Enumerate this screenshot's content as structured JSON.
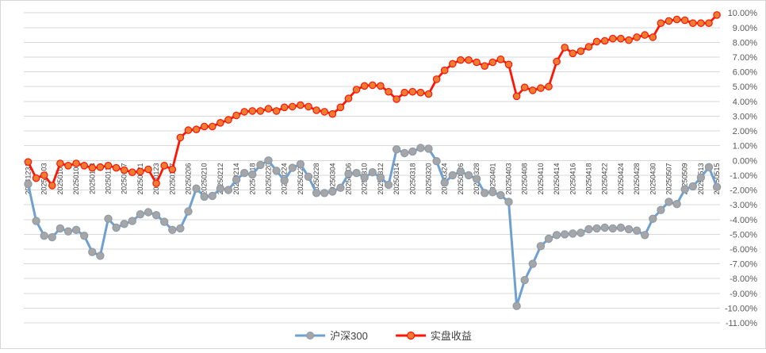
{
  "chart": {
    "background": "#FFFFFF",
    "border_color": "#D6D6D6",
    "grid_color": "#D9D9D9",
    "y_axis_label_color": "#595959",
    "x_axis_label_color": "#404040",
    "series_colors": {
      "csi300_line": "#6FA0D2",
      "csi300_marker_fill": "#A6A6A6",
      "csi300_marker_stroke": "#8C9BAB",
      "returns_line": "#FF1506",
      "returns_marker_fill": "#ED7D31",
      "returns_marker_stroke": "#FF1506"
    }
  },
  "chart_data": {
    "type": "line",
    "title": "",
    "xlabel": "",
    "ylabel": "",
    "ylim": [
      -11,
      10
    ],
    "y_tick_step": 1,
    "grid": "horizontal",
    "legend_position": "bottom",
    "y_tick_labels": [
      "10.00%",
      "9.00%",
      "8.00%",
      "7.00%",
      "6.00%",
      "5.00%",
      "4.00%",
      "3.00%",
      "2.00%",
      "1.00%",
      "0.00%",
      "-1.00%",
      "-2.00%",
      "-3.00%",
      "-4.00%",
      "-5.00%",
      "-6.00%",
      "-7.00%",
      "-8.00%",
      "-9.00%",
      "-10.00%",
      "-11.00%"
    ],
    "x": [
      "20241231",
      "20250102",
      "20250103",
      "20250106",
      "20250107",
      "20250108",
      "20250109",
      "20250110",
      "20250113",
      "20250114",
      "20250115",
      "20250116",
      "20250117",
      "20250120",
      "20250121",
      "20250122",
      "20250123",
      "20250124",
      "20250127",
      "20250205",
      "20250206",
      "20250207",
      "20250210",
      "20250211",
      "20250212",
      "20250213",
      "20250214",
      "20250217",
      "20250218",
      "20250219",
      "20250220",
      "20250221",
      "20250224",
      "20250225",
      "20250226",
      "20250227",
      "20250228",
      "20250303",
      "20250304",
      "20250305",
      "20250306",
      "20250307",
      "20250310",
      "20250311",
      "20250312",
      "20250313",
      "20250314",
      "20250317",
      "20250318",
      "20250319",
      "20250320",
      "20250321",
      "20250324",
      "20250325",
      "20250326",
      "20250327",
      "20250328",
      "20250331",
      "20250401",
      "20250402",
      "20250403",
      "20250407",
      "20250408",
      "20250409",
      "20250410",
      "20250411",
      "20250414",
      "20250415",
      "20250416",
      "20250417",
      "20250418",
      "20250421",
      "20250422",
      "20250423",
      "20250424",
      "20250425",
      "20250428",
      "20250429",
      "20250430",
      "20250506",
      "20250507",
      "20250508",
      "20250509",
      "20250512",
      "20250513",
      "20250514",
      "20250515"
    ],
    "x_tick_labels": [
      "20241231",
      "20250103",
      "20250107",
      "20250109",
      "20250113",
      "20250115",
      "20250117",
      "20250121",
      "20250123",
      "20250127",
      "20250206",
      "20250210",
      "20250212",
      "20250214",
      "20250218",
      "20250220",
      "20250224",
      "20250226",
      "20250228",
      "20250304",
      "20250306",
      "20250310",
      "20250312",
      "20250314",
      "20250318",
      "20250320",
      "20250324",
      "20250326",
      "20250328",
      "20250401",
      "20250403",
      "20250408",
      "20250410",
      "20250414",
      "20250416",
      "20250418",
      "20250422",
      "20250424",
      "20250428",
      "20250430",
      "20250507",
      "20250509",
      "20250513",
      "20250515"
    ],
    "x_tick_every": 2,
    "series": [
      {
        "name": "沪深300",
        "values": [
          -1.6,
          -4.1,
          -5.1,
          -5.2,
          -4.6,
          -4.8,
          -4.7,
          -5.1,
          -6.2,
          -6.45,
          -3.95,
          -4.55,
          -4.3,
          -4.1,
          -3.65,
          -3.5,
          -3.7,
          -4.15,
          -4.7,
          -4.6,
          -3.45,
          -1.9,
          -2.45,
          -2.4,
          -1.9,
          -2.0,
          -1.3,
          -0.85,
          -0.95,
          -0.3,
          0.0,
          -0.7,
          -1.35,
          -0.5,
          -0.25,
          -1.1,
          -2.2,
          -2.2,
          -2.1,
          -1.85,
          -0.9,
          -0.85,
          -1.15,
          -0.8,
          -1.15,
          -1.65,
          0.75,
          0.5,
          0.6,
          0.85,
          0.8,
          -0.05,
          -1.5,
          -1.0,
          -0.75,
          -1.0,
          -1.25,
          -2.2,
          -2.15,
          -2.35,
          -2.8,
          -9.85,
          -8.1,
          -7.0,
          -5.8,
          -5.3,
          -5.05,
          -5.0,
          -4.95,
          -4.9,
          -4.65,
          -4.6,
          -4.55,
          -4.6,
          -4.55,
          -4.65,
          -4.75,
          -5.05,
          -3.95,
          -3.35,
          -2.8,
          -2.95,
          -1.95,
          -1.75,
          -1.15,
          -0.45,
          -1.8
        ]
      },
      {
        "name": "实盘收益",
        "values": [
          -0.1,
          -1.2,
          -1.0,
          -1.7,
          -0.2,
          -0.35,
          -0.2,
          -0.35,
          -0.5,
          -0.45,
          -0.35,
          -0.5,
          -0.65,
          -0.8,
          -0.75,
          -0.6,
          -1.55,
          -0.35,
          -0.6,
          1.55,
          2.05,
          2.1,
          2.3,
          2.3,
          2.55,
          2.75,
          3.05,
          3.3,
          3.35,
          3.35,
          3.5,
          3.35,
          3.6,
          3.65,
          3.75,
          3.65,
          3.4,
          3.3,
          3.15,
          3.6,
          4.2,
          4.8,
          5.05,
          5.1,
          5.05,
          4.65,
          4.15,
          4.6,
          4.65,
          4.6,
          4.5,
          5.5,
          6.1,
          6.55,
          6.8,
          6.8,
          6.65,
          6.4,
          6.65,
          6.85,
          6.5,
          4.35,
          4.95,
          4.75,
          4.9,
          5.0,
          6.7,
          7.65,
          7.25,
          7.4,
          7.7,
          8.05,
          8.1,
          8.25,
          8.25,
          8.15,
          8.35,
          8.5,
          8.35,
          9.3,
          9.45,
          9.55,
          9.5,
          9.3,
          9.3,
          9.3,
          9.85
        ]
      }
    ]
  }
}
